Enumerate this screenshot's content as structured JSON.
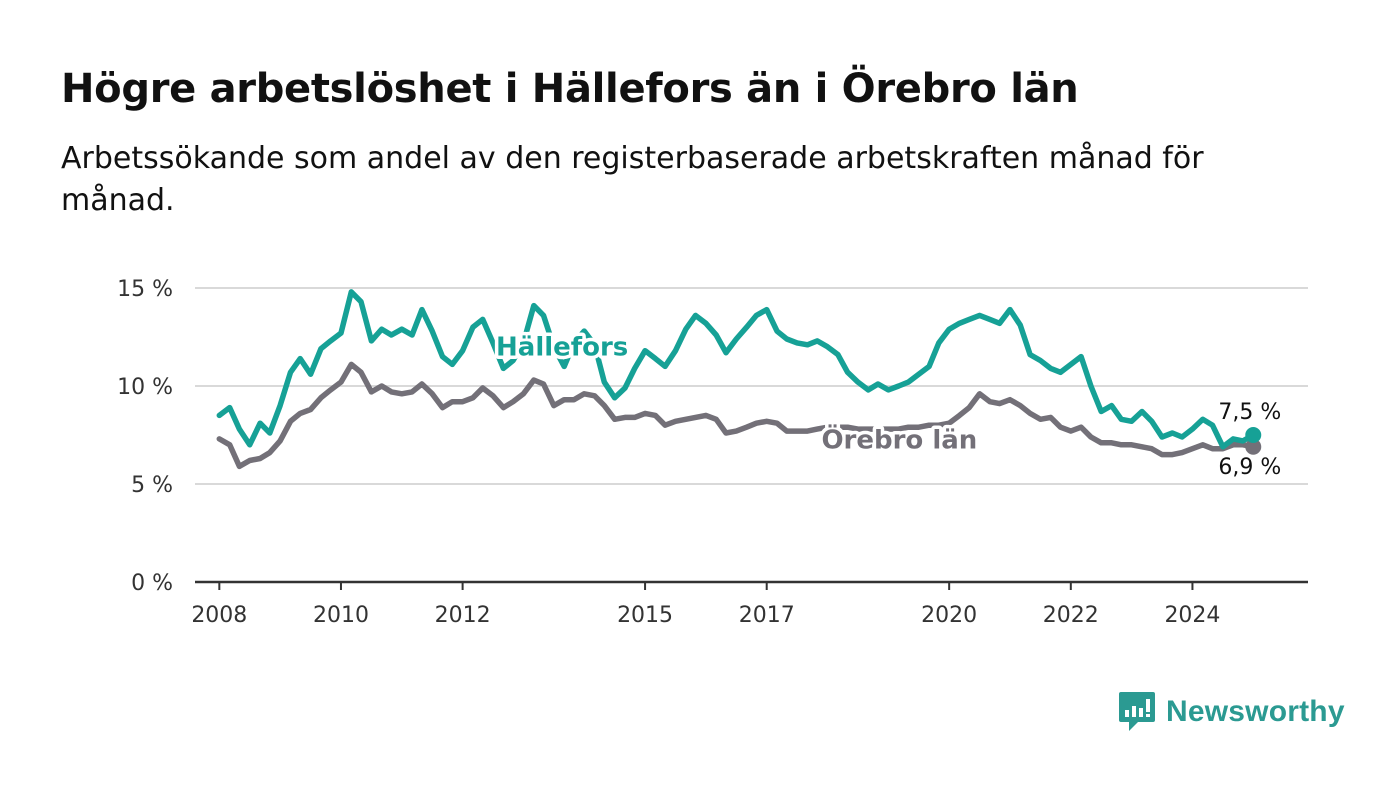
{
  "title": "Högre arbetslöshet i Hällefors än i Örebro län",
  "subtitle": "Arbetssökande som andel av den registerbaserade arbetskraften månad för månad.",
  "brand": {
    "name": "Newsworthy",
    "icon": "chat-bars-icon",
    "color": "#2b9a92"
  },
  "chart_data": {
    "type": "line",
    "ylim": [
      0,
      15
    ],
    "xlim": [
      2007.6,
      2025.9
    ],
    "y_ticks": [
      0,
      5,
      10,
      15
    ],
    "y_tick_labels": [
      "0 %",
      "5 %",
      "10 %",
      "15 %"
    ],
    "x_ticks": [
      2008,
      2010,
      2012,
      2015,
      2017,
      2020,
      2022,
      2024
    ],
    "x_tick_labels": [
      "2008",
      "2010",
      "2012",
      "2015",
      "2017",
      "2020",
      "2022",
      "2024"
    ],
    "grid": "horizontal",
    "series": [
      {
        "name": "Hällefors",
        "color": "#16a196",
        "end_label": "7,5 %",
        "points": [
          [
            2008.0,
            8.5
          ],
          [
            2008.17,
            8.9
          ],
          [
            2008.33,
            7.8
          ],
          [
            2008.5,
            7.0
          ],
          [
            2008.67,
            8.1
          ],
          [
            2008.83,
            7.6
          ],
          [
            2009.0,
            9.0
          ],
          [
            2009.17,
            10.7
          ],
          [
            2009.33,
            11.4
          ],
          [
            2009.5,
            10.6
          ],
          [
            2009.67,
            11.9
          ],
          [
            2009.83,
            12.3
          ],
          [
            2010.0,
            12.7
          ],
          [
            2010.17,
            14.8
          ],
          [
            2010.33,
            14.3
          ],
          [
            2010.5,
            12.3
          ],
          [
            2010.67,
            12.9
          ],
          [
            2010.83,
            12.6
          ],
          [
            2011.0,
            12.9
          ],
          [
            2011.17,
            12.6
          ],
          [
            2011.33,
            13.9
          ],
          [
            2011.5,
            12.8
          ],
          [
            2011.67,
            11.5
          ],
          [
            2011.83,
            11.1
          ],
          [
            2012.0,
            11.8
          ],
          [
            2012.17,
            13.0
          ],
          [
            2012.33,
            13.4
          ],
          [
            2012.5,
            12.2
          ],
          [
            2012.67,
            10.9
          ],
          [
            2012.83,
            11.3
          ],
          [
            2013.0,
            12.2
          ],
          [
            2013.17,
            14.1
          ],
          [
            2013.33,
            13.6
          ],
          [
            2013.5,
            12.0
          ],
          [
            2013.67,
            11.0
          ],
          [
            2013.83,
            12.2
          ],
          [
            2014.0,
            12.8
          ],
          [
            2014.17,
            12.1
          ],
          [
            2014.33,
            10.2
          ],
          [
            2014.5,
            9.4
          ],
          [
            2014.67,
            9.9
          ],
          [
            2014.83,
            10.9
          ],
          [
            2015.0,
            11.8
          ],
          [
            2015.17,
            11.4
          ],
          [
            2015.33,
            11.0
          ],
          [
            2015.5,
            11.8
          ],
          [
            2015.67,
            12.9
          ],
          [
            2015.83,
            13.6
          ],
          [
            2016.0,
            13.2
          ],
          [
            2016.17,
            12.6
          ],
          [
            2016.33,
            11.7
          ],
          [
            2016.5,
            12.4
          ],
          [
            2016.67,
            13.0
          ],
          [
            2016.83,
            13.6
          ],
          [
            2017.0,
            13.9
          ],
          [
            2017.17,
            12.8
          ],
          [
            2017.33,
            12.4
          ],
          [
            2017.5,
            12.2
          ],
          [
            2017.67,
            12.1
          ],
          [
            2017.83,
            12.3
          ],
          [
            2018.0,
            12.0
          ],
          [
            2018.17,
            11.6
          ],
          [
            2018.33,
            10.7
          ],
          [
            2018.5,
            10.2
          ],
          [
            2018.67,
            9.8
          ],
          [
            2018.83,
            10.1
          ],
          [
            2019.0,
            9.8
          ],
          [
            2019.17,
            10.0
          ],
          [
            2019.33,
            10.2
          ],
          [
            2019.5,
            10.6
          ],
          [
            2019.67,
            11.0
          ],
          [
            2019.83,
            12.2
          ],
          [
            2020.0,
            12.9
          ],
          [
            2020.17,
            13.2
          ],
          [
            2020.33,
            13.4
          ],
          [
            2020.5,
            13.6
          ],
          [
            2020.67,
            13.4
          ],
          [
            2020.83,
            13.2
          ],
          [
            2021.0,
            13.9
          ],
          [
            2021.17,
            13.1
          ],
          [
            2021.33,
            11.6
          ],
          [
            2021.5,
            11.3
          ],
          [
            2021.67,
            10.9
          ],
          [
            2021.83,
            10.7
          ],
          [
            2022.0,
            11.1
          ],
          [
            2022.17,
            11.5
          ],
          [
            2022.33,
            10.0
          ],
          [
            2022.5,
            8.7
          ],
          [
            2022.67,
            9.0
          ],
          [
            2022.83,
            8.3
          ],
          [
            2023.0,
            8.2
          ],
          [
            2023.17,
            8.7
          ],
          [
            2023.33,
            8.2
          ],
          [
            2023.5,
            7.4
          ],
          [
            2023.67,
            7.6
          ],
          [
            2023.83,
            7.4
          ],
          [
            2024.0,
            7.8
          ],
          [
            2024.17,
            8.3
          ],
          [
            2024.33,
            8.0
          ],
          [
            2024.5,
            6.9
          ],
          [
            2024.67,
            7.3
          ],
          [
            2024.83,
            7.2
          ],
          [
            2025.0,
            7.5
          ]
        ]
      },
      {
        "name": "Örebro län",
        "color": "#737078",
        "end_label": "6,9 %",
        "points": [
          [
            2008.0,
            7.3
          ],
          [
            2008.17,
            7.0
          ],
          [
            2008.33,
            5.9
          ],
          [
            2008.5,
            6.2
          ],
          [
            2008.67,
            6.3
          ],
          [
            2008.83,
            6.6
          ],
          [
            2009.0,
            7.2
          ],
          [
            2009.17,
            8.2
          ],
          [
            2009.33,
            8.6
          ],
          [
            2009.5,
            8.8
          ],
          [
            2009.67,
            9.4
          ],
          [
            2009.83,
            9.8
          ],
          [
            2010.0,
            10.2
          ],
          [
            2010.17,
            11.1
          ],
          [
            2010.33,
            10.7
          ],
          [
            2010.5,
            9.7
          ],
          [
            2010.67,
            10.0
          ],
          [
            2010.83,
            9.7
          ],
          [
            2011.0,
            9.6
          ],
          [
            2011.17,
            9.7
          ],
          [
            2011.33,
            10.1
          ],
          [
            2011.5,
            9.6
          ],
          [
            2011.67,
            8.9
          ],
          [
            2011.83,
            9.2
          ],
          [
            2012.0,
            9.2
          ],
          [
            2012.17,
            9.4
          ],
          [
            2012.33,
            9.9
          ],
          [
            2012.5,
            9.5
          ],
          [
            2012.67,
            8.9
          ],
          [
            2012.83,
            9.2
          ],
          [
            2013.0,
            9.6
          ],
          [
            2013.17,
            10.3
          ],
          [
            2013.33,
            10.1
          ],
          [
            2013.5,
            9.0
          ],
          [
            2013.67,
            9.3
          ],
          [
            2013.83,
            9.3
          ],
          [
            2014.0,
            9.6
          ],
          [
            2014.17,
            9.5
          ],
          [
            2014.33,
            9.0
          ],
          [
            2014.5,
            8.3
          ],
          [
            2014.67,
            8.4
          ],
          [
            2014.83,
            8.4
          ],
          [
            2015.0,
            8.6
          ],
          [
            2015.17,
            8.5
          ],
          [
            2015.33,
            8.0
          ],
          [
            2015.5,
            8.2
          ],
          [
            2015.67,
            8.3
          ],
          [
            2015.83,
            8.4
          ],
          [
            2016.0,
            8.5
          ],
          [
            2016.17,
            8.3
          ],
          [
            2016.33,
            7.6
          ],
          [
            2016.5,
            7.7
          ],
          [
            2016.67,
            7.9
          ],
          [
            2016.83,
            8.1
          ],
          [
            2017.0,
            8.2
          ],
          [
            2017.17,
            8.1
          ],
          [
            2017.33,
            7.7
          ],
          [
            2017.5,
            7.7
          ],
          [
            2017.67,
            7.7
          ],
          [
            2017.83,
            7.8
          ],
          [
            2018.0,
            7.9
          ],
          [
            2018.17,
            7.9
          ],
          [
            2018.33,
            7.9
          ],
          [
            2018.5,
            7.8
          ],
          [
            2018.67,
            7.8
          ],
          [
            2018.83,
            7.8
          ],
          [
            2019.0,
            7.8
          ],
          [
            2019.17,
            7.8
          ],
          [
            2019.33,
            7.9
          ],
          [
            2019.5,
            7.9
          ],
          [
            2019.67,
            8.0
          ],
          [
            2019.83,
            8.0
          ],
          [
            2020.0,
            8.1
          ],
          [
            2020.17,
            8.5
          ],
          [
            2020.33,
            8.9
          ],
          [
            2020.5,
            9.6
          ],
          [
            2020.67,
            9.2
          ],
          [
            2020.83,
            9.1
          ],
          [
            2021.0,
            9.3
          ],
          [
            2021.17,
            9.0
          ],
          [
            2021.33,
            8.6
          ],
          [
            2021.5,
            8.3
          ],
          [
            2021.67,
            8.4
          ],
          [
            2021.83,
            7.9
          ],
          [
            2022.0,
            7.7
          ],
          [
            2022.17,
            7.9
          ],
          [
            2022.33,
            7.4
          ],
          [
            2022.5,
            7.1
          ],
          [
            2022.67,
            7.1
          ],
          [
            2022.83,
            7.0
          ],
          [
            2023.0,
            7.0
          ],
          [
            2023.17,
            6.9
          ],
          [
            2023.33,
            6.8
          ],
          [
            2023.5,
            6.5
          ],
          [
            2023.67,
            6.5
          ],
          [
            2023.83,
            6.6
          ],
          [
            2024.0,
            6.8
          ],
          [
            2024.17,
            7.0
          ],
          [
            2024.33,
            6.8
          ],
          [
            2024.5,
            6.8
          ],
          [
            2024.67,
            7.0
          ],
          [
            2024.83,
            7.0
          ],
          [
            2025.0,
            6.9
          ]
        ]
      }
    ]
  }
}
